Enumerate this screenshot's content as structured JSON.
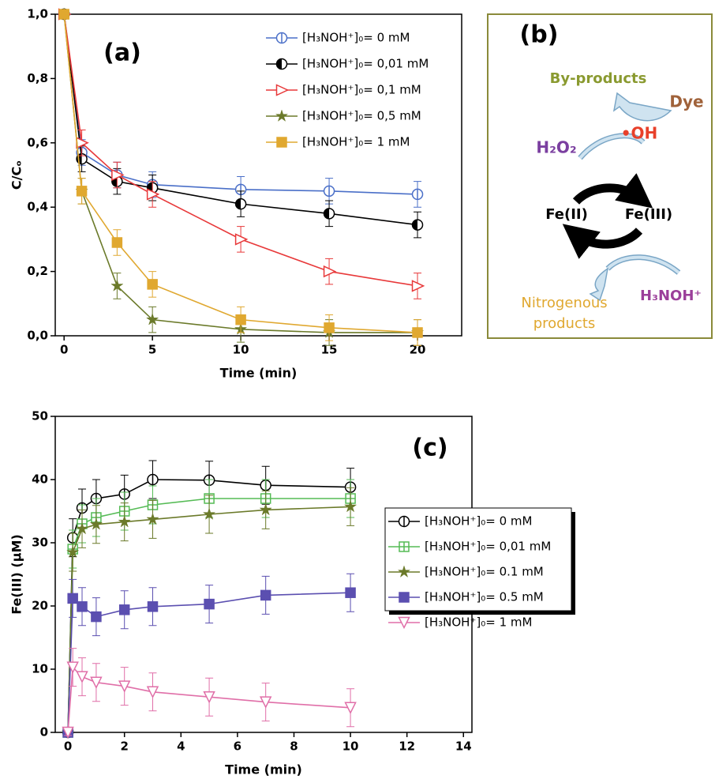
{
  "chart_data": [
    {
      "type": "line",
      "annotation": "(a)",
      "x_label": "Time (min)",
      "y_label": "C/Cₒ",
      "x": [
        0,
        1,
        3,
        5,
        10,
        15,
        20
      ],
      "xlim": [
        -0.5,
        22.5
      ],
      "xticks": [
        0,
        5,
        10,
        15,
        20
      ],
      "ylim": [
        0,
        1
      ],
      "yticks": [
        {
          "value": 0,
          "label": "0,0"
        },
        {
          "value": 0.2,
          "label": "0,2"
        },
        {
          "value": 0.4,
          "label": "0,4"
        },
        {
          "value": 0.6,
          "label": "0,6"
        },
        {
          "value": 0.8,
          "label": "0,8"
        },
        {
          "value": 1,
          "label": "1,0"
        }
      ],
      "legend": "upper right",
      "series": [
        {
          "name": "[H₃NOH⁺]₀= 0 mM",
          "color": "#4a6fc8",
          "marker": "circle-line",
          "values": [
            1.0,
            0.57,
            0.5,
            0.47,
            0.455,
            0.45,
            0.44
          ],
          "errors": [
            0.01,
            0.04,
            0.04,
            0.04,
            0.04,
            0.04,
            0.04
          ]
        },
        {
          "name": "[H₃NOH⁺]₀= 0,01 mM",
          "color": "#000000",
          "marker": "circle-half",
          "values": [
            1.0,
            0.55,
            0.48,
            0.46,
            0.41,
            0.38,
            0.345
          ],
          "errors": [
            0.01,
            0.04,
            0.04,
            0.04,
            0.04,
            0.04,
            0.04
          ]
        },
        {
          "name": "[H₃NOH⁺]₀= 0,1 mM",
          "color": "#e8393a",
          "marker": "triangle-right",
          "values": [
            1.0,
            0.6,
            0.5,
            0.44,
            0.3,
            0.2,
            0.155
          ],
          "errors": [
            0.01,
            0.04,
            0.04,
            0.04,
            0.04,
            0.04,
            0.04
          ]
        },
        {
          "name": "[H₃NOH⁺]₀= 0,5 mM",
          "color": "#6b7a2a",
          "marker": "star",
          "values": [
            1.0,
            0.45,
            0.155,
            0.05,
            0.02,
            0.01,
            0.01
          ],
          "errors": [
            0.01,
            0.04,
            0.04,
            0.04,
            0.04,
            0.04,
            0.04
          ]
        },
        {
          "name": "[H₃NOH⁺]₀= 1 mM",
          "color": "#e0a830",
          "marker": "square",
          "values": [
            1.0,
            0.45,
            0.29,
            0.16,
            0.05,
            0.025,
            0.01
          ],
          "errors": [
            0.01,
            0.04,
            0.04,
            0.04,
            0.04,
            0.04,
            0.04
          ]
        }
      ]
    },
    {
      "type": "line",
      "annotation": "(c)",
      "x_label": "Time (min)",
      "y_label": "Fe(III) (µM)",
      "x": [
        0,
        0.17,
        0.5,
        1,
        2,
        3,
        5,
        7,
        10
      ],
      "xlim": [
        -0.45,
        14.3
      ],
      "xticks": [
        0,
        2,
        4,
        6,
        8,
        10,
        12,
        14
      ],
      "ylim": [
        0,
        50
      ],
      "yticks": [
        0,
        10,
        20,
        30,
        40,
        50
      ],
      "legend": "right",
      "series": [
        {
          "name": "[H₃NOH⁺]₀= 0 mM",
          "color": "#000000",
          "marker": "circle-line",
          "values": [
            0,
            30.8,
            35.5,
            37,
            37.7,
            40,
            39.9,
            39.1,
            38.8
          ],
          "errors": [
            0.5,
            3,
            3,
            3,
            3,
            3,
            3,
            3,
            3
          ]
        },
        {
          "name": "[H₃NOH⁺]₀= 0,01 mM",
          "color": "#55bb55",
          "marker": "square-plus",
          "values": [
            0,
            29,
            33,
            34,
            35,
            36,
            37,
            37,
            37
          ],
          "errors": [
            0.5,
            3,
            3,
            3,
            3,
            3,
            3,
            3,
            3
          ]
        },
        {
          "name": "[H₃NOH⁺]₀= 0.1 mM",
          "color": "#6b7a2a",
          "marker": "star",
          "values": [
            0,
            28.5,
            32.2,
            32.9,
            33.3,
            33.7,
            34.5,
            35.2,
            35.7
          ],
          "errors": [
            0.5,
            3,
            3,
            3,
            3,
            3,
            3,
            3,
            3
          ]
        },
        {
          "name": "[H₃NOH⁺]₀= 0.5 mM",
          "color": "#5b4fb0",
          "marker": "square",
          "values": [
            0,
            21.2,
            19.9,
            18.3,
            19.4,
            19.9,
            20.3,
            21.7,
            22.1
          ],
          "errors": [
            0.5,
            3,
            3,
            3,
            3,
            3,
            3,
            3,
            3
          ]
        },
        {
          "name": "[H₃NOH⁺]₀= 1 mM",
          "color": "#e06fa8",
          "marker": "triangle-down",
          "values": [
            0,
            10.3,
            8.8,
            7.9,
            7.3,
            6.4,
            5.6,
            4.8,
            3.9
          ],
          "errors": [
            0.5,
            3,
            3,
            3,
            3,
            3,
            3,
            3,
            3
          ]
        }
      ]
    }
  ],
  "diagram": {
    "label": "(b)",
    "by_products": "By-products",
    "dye": "Dye",
    "radical": "•OH",
    "oxidant": "H₂O₂",
    "fe2": "Fe(II)",
    "fe3": "Fe(III)",
    "nitrogenous_products": [
      "Nitrogenous",
      "products"
    ],
    "reductant": "H₃NOH⁺"
  }
}
